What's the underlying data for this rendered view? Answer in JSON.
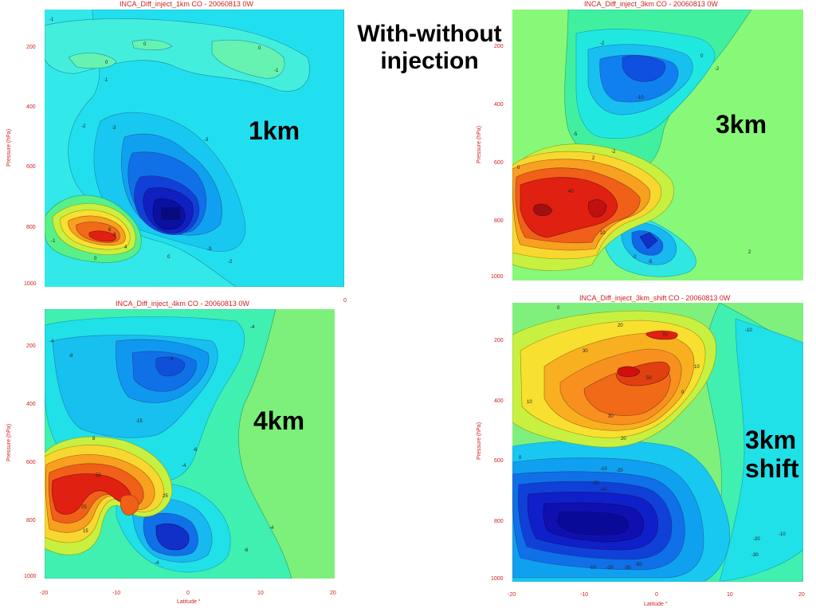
{
  "slide_title": "With-without injection",
  "slide_title_lines": [
    "With-without",
    "injection"
  ],
  "chart_data": [
    {
      "type": "heatmap",
      "title": "INCA_Diff_inject_1km  CO - 20060813  0W",
      "label": "1km",
      "ylabel": "Pressure (hPa)",
      "yticks": [
        "200",
        "400",
        "600",
        "800",
        "1000"
      ],
      "xticks": [
        "0"
      ],
      "contour_labels": [
        "-1",
        "0",
        "0",
        "-1",
        "-2",
        "-3",
        "-3",
        "-3",
        "-1",
        "0",
        "-1",
        "-2",
        "2",
        "4",
        "6",
        "8"
      ],
      "colors": {
        "background": "#33e8e8",
        "min": "#1010c8",
        "max": "#e02010"
      }
    },
    {
      "type": "heatmap",
      "title": "INCA_Diff_inject_3km  CO - 20060813  0W",
      "label": "3km",
      "ylabel": "Pressure (hPa)",
      "yticks": [
        "200",
        "400",
        "600",
        "800",
        "1000"
      ],
      "contour_labels": [
        "-2",
        "-10",
        "-5",
        "-2",
        "2",
        "10",
        "40",
        "-2",
        "-5",
        "2"
      ],
      "colors": {
        "background": "#88f878",
        "min": "#1040d8",
        "max": "#d01010"
      }
    },
    {
      "type": "heatmap",
      "title": "INCA_Diff_inject_4km  CO - 20060813  0W",
      "label": "4km",
      "ylabel": "Pressure (hPa)",
      "xlabel": "Latitude °",
      "yticks": [
        "200",
        "400",
        "600",
        "800",
        "1000"
      ],
      "xticks": [
        "-20",
        "-10",
        "0",
        "10",
        "20"
      ],
      "contour_labels": [
        "-4",
        "-8",
        "-15",
        "-6",
        "-4",
        "8",
        "50",
        "25",
        "15",
        "-4",
        "-6"
      ],
      "colors": {
        "background": "#7cf07a",
        "min": "#1030d8",
        "max": "#e03010"
      }
    },
    {
      "type": "heatmap",
      "title": "INCA_Diff_inject_3km_shift  CO - 20060813  0W",
      "label_lines": [
        "3km",
        "shift"
      ],
      "ylabel": "Pressure (hPa)",
      "xlabel": "Latitude °",
      "yticks": [
        "200",
        "400",
        "600",
        "800",
        "1000"
      ],
      "xticks": [
        "-20",
        "-10",
        "0",
        "10",
        "20"
      ],
      "contour_labels": [
        "0",
        "20",
        "70",
        "30",
        "50",
        "10",
        "0",
        "-10",
        "-20",
        "-30",
        "10",
        "-10",
        "-20",
        "-30",
        "-10"
      ],
      "colors": {
        "background": "#80f07c",
        "min": "#1010d0",
        "max": "#e05010"
      }
    }
  ]
}
